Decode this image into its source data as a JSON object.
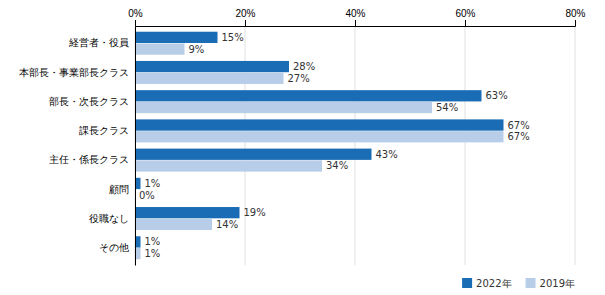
{
  "chart_data": {
    "type": "bar",
    "orientation": "horizontal",
    "categories": [
      "経営者・役員",
      "本部長・事業部長クラス",
      "部長・次長クラス",
      "課長クラス",
      "主任・係長クラス",
      "顧問",
      "役職なし",
      "その他"
    ],
    "series": [
      {
        "name": "2022年",
        "color": "#1A6DB5",
        "values": [
          15,
          28,
          63,
          67,
          43,
          1,
          19,
          1
        ],
        "value_labels": [
          "15%",
          "28%",
          "63%",
          "67%",
          "43%",
          "1%",
          "19%",
          "1%"
        ]
      },
      {
        "name": "2019年",
        "color": "#B8CEE8",
        "values": [
          9,
          27,
          54,
          67,
          34,
          0,
          14,
          1
        ],
        "value_labels": [
          "9%",
          "27%",
          "54%",
          "67%",
          "34%",
          "0%",
          "14%",
          "1%"
        ]
      }
    ],
    "xlim": [
      0,
      80
    ],
    "xticks": [
      {
        "value": 0,
        "label": "0%"
      },
      {
        "value": 20,
        "label": "20%"
      },
      {
        "value": 40,
        "label": "40%"
      },
      {
        "value": 60,
        "label": "60%"
      },
      {
        "value": 80,
        "label": "80%"
      }
    ],
    "grid": true,
    "legend": "lower right",
    "data_labels": true
  }
}
